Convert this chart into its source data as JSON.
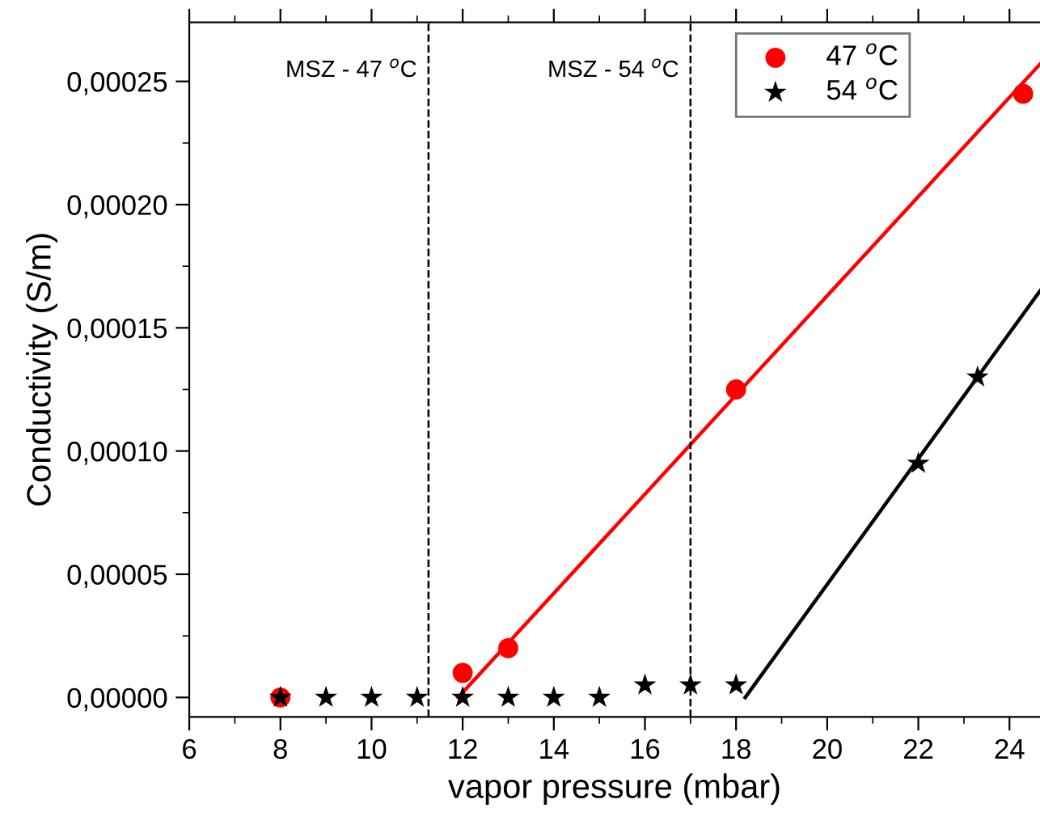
{
  "chart_data": {
    "type": "scatter",
    "xlabel": "vapor pressure (mbar)",
    "ylabel": "Conductivity (S/m)",
    "xlim": [
      6,
      24.67
    ],
    "xticks": [
      6,
      8,
      10,
      12,
      14,
      16,
      18,
      20,
      22,
      24
    ],
    "ylim": [
      -7.9e-06,
      0.000274
    ],
    "yticks": [
      {
        "value": 0,
        "label": "0,00000"
      },
      {
        "value": 5e-05,
        "label": "0,00005"
      },
      {
        "value": 0.0001,
        "label": "0,00010"
      },
      {
        "value": 0.00015,
        "label": "0,00015"
      },
      {
        "value": 0.0002,
        "label": "0,00020"
      },
      {
        "value": 0.00025,
        "label": "0,00025"
      }
    ],
    "grid": false,
    "legend": "top right",
    "series": [
      {
        "name": "47 $^{o}$C",
        "marker": "circle",
        "color": "#ff0000",
        "x": [
          8,
          12,
          13,
          18,
          24.3
        ],
        "values": [
          0,
          1e-05,
          2e-05,
          0.000125,
          0.000245
        ]
      },
      {
        "name": "54 $^{o}$C",
        "marker": "star",
        "color": "#000000",
        "x": [
          8,
          9,
          10,
          11,
          12,
          13,
          14,
          15,
          16,
          17,
          18,
          22,
          23.3
        ],
        "values": [
          0,
          0,
          0,
          0,
          0,
          0,
          0,
          0,
          5e-06,
          5e-06,
          5e-06,
          9.5e-05,
          0.00013
        ]
      },
      {
        "type": "line",
        "color": "#ff0000",
        "x": [
          11.9,
          24.67
        ],
        "values": [
          0,
          0.000257
        ]
      },
      {
        "type": "line",
        "color": "#000000",
        "x": [
          18.2,
          24.67
        ],
        "values": [
          0,
          0.000165
        ]
      }
    ],
    "ref_lines": [
      {
        "axis": "x",
        "value": 11.25,
        "label": "MSZ - 47 $^{o}$C",
        "color": "#000000",
        "line_style": "dashed"
      },
      {
        "axis": "x",
        "value": 17,
        "label": "MSZ - 54 $^{o}$C",
        "color": "#000000",
        "line_style": "dashed"
      }
    ]
  }
}
